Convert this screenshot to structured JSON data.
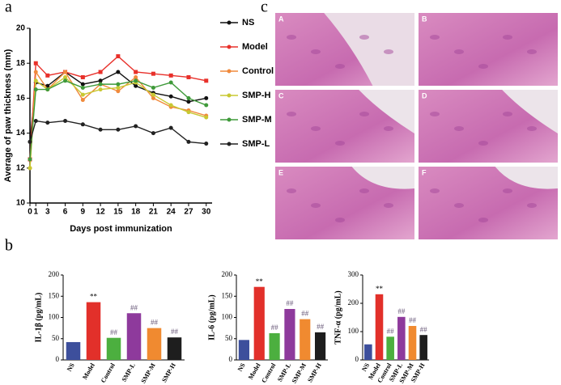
{
  "panel_labels": [
    "a",
    "b",
    "c"
  ],
  "histology_panels": [
    "A",
    "B",
    "C",
    "D",
    "E",
    "F"
  ],
  "chart_data": [
    {
      "type": "line",
      "ylabel": "Average of paw thickness (mm)",
      "xlabel": "Days post immunization",
      "x": [
        0,
        1,
        3,
        6,
        9,
        12,
        15,
        18,
        21,
        24,
        27,
        30
      ],
      "xlim": [
        0,
        31
      ],
      "xticks": [
        0,
        1,
        3,
        6,
        9,
        12,
        15,
        18,
        21,
        24,
        27,
        30
      ],
      "ylim": [
        10,
        20
      ],
      "yticks": [
        10,
        12,
        14,
        16,
        18,
        20
      ],
      "series": [
        {
          "name": "NS",
          "color": "#111111",
          "values": [
            13.5,
            16.9,
            16.7,
            17.5,
            16.8,
            17.0,
            17.5,
            16.7,
            16.3,
            16.1,
            15.8,
            16.0
          ]
        },
        {
          "name": "Model",
          "color": "#e8302a",
          "values": [
            12.5,
            18.0,
            17.3,
            17.5,
            17.2,
            17.5,
            18.4,
            17.5,
            17.4,
            17.3,
            17.2,
            17.0
          ]
        },
        {
          "name": "Control",
          "color": "#f08a3c",
          "values": [
            12.0,
            17.5,
            16.5,
            17.5,
            15.9,
            16.8,
            16.4,
            17.2,
            16.0,
            15.5,
            15.3,
            15.0
          ]
        },
        {
          "name": "SMP-H",
          "color": "#c8c832",
          "values": [
            12.0,
            17.0,
            16.5,
            17.2,
            16.2,
            16.5,
            16.6,
            16.9,
            16.2,
            15.6,
            15.2,
            14.9
          ]
        },
        {
          "name": "SMP-M",
          "color": "#3f9a3a",
          "values": [
            12.5,
            16.5,
            16.5,
            17.0,
            16.6,
            16.8,
            16.8,
            17.0,
            16.6,
            16.9,
            16.0,
            15.6
          ]
        },
        {
          "name": "SMP-L",
          "color": "#222222",
          "values": [
            13.5,
            14.7,
            14.6,
            14.7,
            14.5,
            14.2,
            14.2,
            14.4,
            14.0,
            14.3,
            13.5,
            13.4
          ]
        }
      ]
    },
    {
      "type": "bar",
      "ylabel": "IL-1β (pg/mL)",
      "categories": [
        "NS",
        "Model",
        "Control",
        "SMP-L",
        "SMP-M",
        "SMP-H"
      ],
      "colors": [
        "#3d4f9c",
        "#e2302a",
        "#4caf3f",
        "#8e3a9c",
        "#f08a30",
        "#1e1e1e"
      ],
      "values": [
        42,
        136,
        52,
        110,
        75,
        53
      ],
      "markers": [
        null,
        "**",
        "##",
        "##",
        "##",
        "##"
      ],
      "ylim": [
        0,
        200
      ],
      "yticks": [
        0,
        50,
        100,
        150,
        200
      ]
    },
    {
      "type": "bar",
      "ylabel": "IL-6 (pg/mL)",
      "categories": [
        "NS",
        "Model",
        "Control",
        "SMP-L",
        "SMP-M",
        "SMP-H"
      ],
      "colors": [
        "#3d4f9c",
        "#e2302a",
        "#4caf3f",
        "#8e3a9c",
        "#f08a30",
        "#1e1e1e"
      ],
      "values": [
        47,
        172,
        63,
        120,
        96,
        65
      ],
      "markers": [
        null,
        "**",
        "##",
        "##",
        "##",
        "##"
      ],
      "ylim": [
        0,
        200
      ],
      "yticks": [
        0,
        50,
        100,
        150,
        200
      ]
    },
    {
      "type": "bar",
      "ylabel": "TNF-α (pg/mL)",
      "categories": [
        "NS",
        "Model",
        "Control",
        "SMP-L",
        "SMP-M",
        "SMP-H"
      ],
      "colors": [
        "#3d4f9c",
        "#e2302a",
        "#4caf3f",
        "#8e3a9c",
        "#f08a30",
        "#1e1e1e"
      ],
      "values": [
        55,
        232,
        82,
        152,
        120,
        88
      ],
      "markers": [
        null,
        "**",
        "##",
        "##",
        "##",
        "##"
      ],
      "ylim": [
        0,
        300
      ],
      "yticks": [
        0,
        100,
        200,
        300
      ]
    }
  ]
}
